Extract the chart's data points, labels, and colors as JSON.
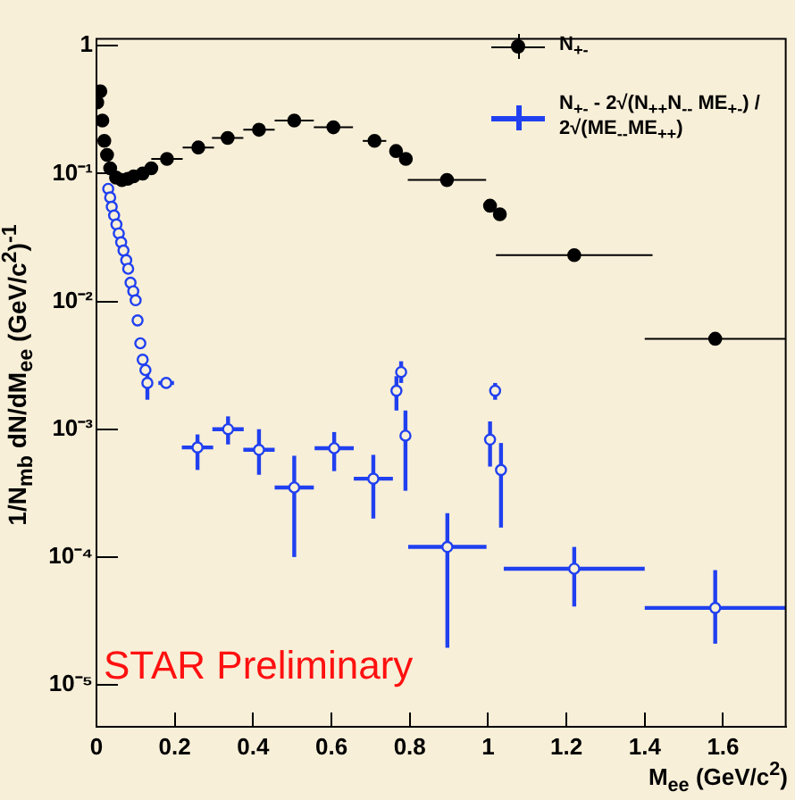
{
  "chart_data": {
    "type": "scatter",
    "xlabel": "M$_{ee}$ (GeV/c$^{2}$)",
    "ylabel": "1/N$_{mb}$ dN/dM$_{ee}$ (GeV/c$^{2}$)$^{-1}$",
    "annotations": [
      "STAR Preliminary"
    ],
    "xlim": [
      0,
      1.76
    ],
    "xticks": [
      0,
      0.2,
      0.4,
      0.6,
      0.8,
      1,
      1.2,
      1.4,
      1.6
    ],
    "ylim": [
      4.7e-06,
      1.13
    ],
    "yticks": [
      {
        "value": 1e-05,
        "label": "10⁻⁵"
      },
      {
        "value": 0.0001,
        "label": "10⁻⁴"
      },
      {
        "value": 0.001,
        "label": "10⁻³"
      },
      {
        "value": 0.01,
        "label": "10⁻²"
      },
      {
        "value": 0.1,
        "label": "10⁻¹"
      },
      1
    ],
    "log": "y",
    "grid": false,
    "legend": "top right",
    "marker": "circle",
    "series": [
      {
        "name": "N$_{+-}$",
        "color": "#000000",
        "x": [
          0.002,
          0.01,
          0.015,
          0.02,
          0.027,
          0.035,
          0.05,
          0.065,
          0.08,
          0.095,
          0.118,
          0.14,
          0.18,
          0.26,
          0.335,
          0.415,
          0.505,
          0.605,
          0.71,
          0.765,
          0.79,
          0.895,
          1.005,
          1.03,
          1.22,
          1.58
        ],
        "values": [
          0.36,
          0.44,
          0.26,
          0.18,
          0.14,
          0.11,
          0.093,
          0.089,
          0.091,
          0.095,
          0.1,
          0.11,
          0.13,
          0.16,
          0.19,
          0.22,
          0.26,
          0.23,
          0.18,
          0.15,
          0.13,
          0.089,
          0.056,
          0.048,
          0.023,
          0.0051
        ],
        "xerrors": [
          null,
          null,
          null,
          null,
          null,
          null,
          null,
          null,
          null,
          null,
          null,
          null,
          0.04,
          0.04,
          0.04,
          0.04,
          0.05,
          0.05,
          0.03,
          null,
          null,
          0.1,
          null,
          null,
          0.2,
          [
            1.4,
            1.76
          ]
        ]
      },
      {
        "name": "N$_{+-}$ - 2√(N$_{++}$N$_{--}$ ME$_{+-}$) / 2√(ME$_{--}$ME$_{++}$)",
        "color": "#2040f0",
        "x": [
          0.03,
          0.035,
          0.039,
          0.045,
          0.051,
          0.057,
          0.063,
          0.069,
          0.076,
          0.081,
          0.087,
          0.094,
          0.1,
          0.105,
          0.112,
          0.118,
          0.125,
          0.13,
          0.178,
          0.258,
          0.336,
          0.415,
          0.505,
          0.607,
          0.707,
          0.766,
          0.778,
          0.789,
          0.896,
          1.005,
          1.018,
          1.033,
          1.22,
          1.58
        ],
        "values": [
          0.076,
          0.065,
          0.055,
          0.047,
          0.04,
          0.034,
          0.029,
          0.025,
          0.021,
          0.018,
          0.014,
          0.012,
          0.0102,
          0.0071,
          0.0047,
          0.0035,
          0.0029,
          0.0023,
          0.0023,
          0.00072,
          0.001,
          0.00069,
          0.00035,
          0.00071,
          0.00041,
          0.002,
          0.0028,
          0.00089,
          0.00012,
          0.00083,
          0.002,
          0.00048,
          8.1e-05,
          4e-05
        ],
        "errors": [
          null,
          null,
          null,
          null,
          null,
          null,
          null,
          null,
          null,
          null,
          null,
          null,
          null,
          null,
          null,
          null,
          null,
          [
            0.0017,
            0.0028
          ],
          null,
          [
            0.00048,
            0.00091
          ],
          [
            0.00076,
            0.00126
          ],
          [
            0.00044,
            0.001
          ],
          [
            0.0001,
            0.00062
          ],
          [
            0.00047,
            0.00095
          ],
          [
            0.0002,
            0.00063
          ],
          [
            0.0014,
            0.0026
          ],
          [
            0.0023,
            0.0034
          ],
          [
            0.00033,
            0.0014
          ],
          [
            1.95e-05,
            0.00022
          ],
          [
            0.00051,
            0.00115
          ],
          [
            0.0017,
            0.0023
          ],
          [
            0.00017,
            0.00078
          ],
          [
            4.1e-05,
            0.00012
          ],
          [
            2.1e-05,
            7.9e-05
          ]
        ],
        "xerrors": [
          null,
          null,
          null,
          null,
          null,
          null,
          null,
          null,
          null,
          null,
          null,
          null,
          null,
          null,
          null,
          null,
          null,
          null,
          0.02,
          0.04,
          0.04,
          0.04,
          0.05,
          0.05,
          0.05,
          null,
          null,
          null,
          0.1,
          null,
          null,
          null,
          [
            1.04,
            1.4
          ],
          [
            1.4,
            1.76
          ]
        ]
      }
    ]
  }
}
